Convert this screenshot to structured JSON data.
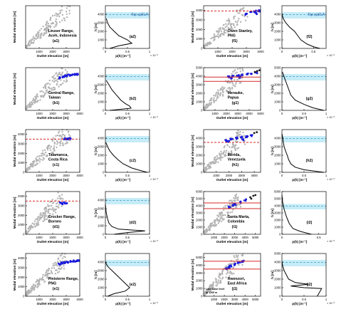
{
  "colors": {
    "scatter_gray": "#b4b4b4",
    "scatter_blue": "#1a1adc",
    "scatter_black": "#1a1a1a",
    "red_line": "#d62a2a",
    "ela_band": "#c6ecf7",
    "ela_dash": "#3b9fc8",
    "profile": "#000000",
    "label_blue": "#1e5aa8"
  },
  "scatter_xlabel": "Outlet elevation [m]",
  "scatter_ylabel": "Modal elevation [m]",
  "profile_ylabel": "h [m]",
  "profile_xlabel": "p(h) [m⁻¹]",
  "profile_exp": "× 10⁻³",
  "top_cpela_label": "Top cpELA",
  "lake_note": [
    "Lake base level",
    "at 1200 m"
  ],
  "chart_data": [
    {
      "type": "scatter",
      "id": "a1",
      "panel": "(a1)",
      "region": [
        "Leuser Range,",
        "Aceh, Indonesia"
      ],
      "xticks": [
        "1000",
        "2000",
        "3000"
      ],
      "yticks": [],
      "xlim": [
        0,
        4000
      ],
      "ylim": [
        0,
        4500
      ],
      "gray_extent": 3400,
      "blue_points": [],
      "black_points": [],
      "red_lines": []
    },
    {
      "type": "line",
      "id": "a2",
      "panel": "(a2)",
      "xticks": [
        "0",
        "0.5",
        "1"
      ],
      "yticks": [
        "0",
        "1000",
        "2000",
        "3000",
        "4000"
      ],
      "xlim": [
        0,
        1
      ],
      "ylim": [
        0,
        5000
      ],
      "ela_band": [
        3500,
        4250
      ],
      "ela_line": 3950,
      "h": [
        0,
        300,
        600,
        1000,
        1500,
        2000,
        2500,
        3000,
        3500
      ],
      "p": [
        0.1,
        0.3,
        0.6,
        0.5,
        0.3,
        0.2,
        0.1,
        0.05,
        0.02
      ]
    },
    {
      "type": "scatter",
      "id": "b1",
      "panel": "(b1)",
      "region": [
        "Central Range,",
        "Taiwan"
      ],
      "xticks": [
        "1000",
        "2000",
        "3000",
        "4000"
      ],
      "yticks": [],
      "xlim": [
        0,
        4000
      ],
      "ylim": [
        0,
        4500
      ],
      "gray_extent": 3100,
      "blue_points": [
        [
          2500,
          3450
        ],
        [
          2800,
          3550
        ],
        [
          3000,
          3650
        ],
        [
          3200,
          3700
        ],
        [
          3400,
          3750
        ],
        [
          3600,
          3800
        ],
        [
          3800,
          3800
        ]
      ],
      "black_points": [],
      "red_lines": []
    },
    {
      "type": "line",
      "id": "b2",
      "panel": "(b2)",
      "xticks": [
        "0",
        "0.5",
        "1"
      ],
      "yticks": [
        "0",
        "1000",
        "2000",
        "3000",
        "4000"
      ],
      "xlim": [
        0,
        1
      ],
      "ylim": [
        0,
        5000
      ],
      "ela_band": [
        3500,
        4250
      ],
      "ela_line": 3950,
      "h": [
        0,
        250,
        500,
        800,
        1200,
        1800,
        2400,
        3000,
        3500
      ],
      "p": [
        0.1,
        0.58,
        0.55,
        0.45,
        0.35,
        0.25,
        0.15,
        0.08,
        0.02
      ]
    },
    {
      "type": "scatter",
      "id": "c1",
      "panel": "(c1)",
      "region": [
        "Talamanca,",
        "Costa Rica"
      ],
      "xticks": [
        "1000",
        "2000",
        "3000",
        "4000"
      ],
      "yticks": [
        "0",
        "1000",
        "2000",
        "3000",
        "4000"
      ],
      "xlim": [
        0,
        4000
      ],
      "ylim": [
        0,
        4500
      ],
      "gray_extent": 3300,
      "blue_points": [
        [
          2900,
          3500
        ],
        [
          3100,
          3550
        ],
        [
          3300,
          3580
        ]
      ],
      "black_points": [],
      "red_lines": [
        3500
      ]
    },
    {
      "type": "line",
      "id": "c2",
      "panel": "(c2)",
      "xticks": [
        "0",
        "0.5",
        "1"
      ],
      "yticks": [
        "0",
        "1000",
        "2000",
        "3000",
        "4000"
      ],
      "xlim": [
        0,
        1
      ],
      "ylim": [
        0,
        5000
      ],
      "ela_band": [
        3500,
        4250
      ],
      "ela_line": 3950,
      "h": [
        0,
        200,
        500,
        1000,
        1500,
        2000,
        2500,
        3000,
        3500
      ],
      "p": [
        0.95,
        0.8,
        0.6,
        0.4,
        0.28,
        0.18,
        0.1,
        0.05,
        0.01
      ]
    },
    {
      "type": "scatter",
      "id": "d1",
      "panel": "(d1)",
      "region": [
        "Crocker Range,",
        "Borneo"
      ],
      "xticks": [
        "1000",
        "2000",
        "3000",
        "4000"
      ],
      "yticks": [
        "0",
        "1000",
        "2000",
        "3000",
        "4000"
      ],
      "xlim": [
        0,
        4000
      ],
      "ylim": [
        0,
        4500
      ],
      "gray_extent": 2800,
      "blue_points": [
        [
          2600,
          3300
        ],
        [
          2700,
          3200
        ],
        [
          2900,
          3300
        ],
        [
          3100,
          3200
        ]
      ],
      "black_points": [],
      "red_lines": [
        3500
      ]
    },
    {
      "type": "line",
      "id": "d2",
      "panel": "(d2)",
      "xticks": [
        "0",
        "0.5",
        "1"
      ],
      "yticks": [
        "0",
        "1000",
        "2000",
        "3000",
        "4000"
      ],
      "xlim": [
        0,
        1
      ],
      "ylim": [
        0,
        5000
      ],
      "ela_band": [
        3500,
        4250
      ],
      "ela_line": 3950,
      "h": [
        0,
        200,
        400,
        600,
        900,
        1300,
        1800,
        2500,
        3500
      ],
      "p": [
        0.2,
        0.5,
        0.9,
        0.3,
        0.15,
        0.08,
        0.05,
        0.02,
        0.0
      ]
    },
    {
      "type": "scatter",
      "id": "e1",
      "panel": "(e1)",
      "region": [
        "Finisterre Range,",
        "PNG"
      ],
      "xticks": [
        "1000",
        "2000",
        "3000",
        "4000"
      ],
      "yticks": [
        "0",
        "1000",
        "2000",
        "3000",
        "4000"
      ],
      "xlim": [
        0,
        4000
      ],
      "ylim": [
        0,
        4500
      ],
      "gray_extent": 3000,
      "blue_points": [
        [
          2500,
          3400
        ],
        [
          2700,
          3500
        ],
        [
          2900,
          3550
        ],
        [
          3100,
          3600
        ],
        [
          3300,
          3650
        ],
        [
          3500,
          3700
        ],
        [
          3700,
          3700
        ],
        [
          3900,
          3750
        ]
      ],
      "black_points": [],
      "red_lines": []
    },
    {
      "type": "line",
      "id": "e2",
      "panel": "(e2)",
      "xticks": [
        "0",
        "0.5",
        "1"
      ],
      "yticks": [
        "0",
        "1000",
        "2000",
        "3000",
        "4000"
      ],
      "xlim": [
        0,
        1
      ],
      "ylim": [
        0,
        5000
      ],
      "ela_band": [
        3500,
        4250
      ],
      "ela_line": 3950,
      "h": [
        0,
        300,
        600,
        1000,
        1500,
        2000,
        2500,
        3000,
        3500,
        4000
      ],
      "p": [
        0.05,
        0.2,
        0.45,
        0.55,
        0.45,
        0.35,
        0.25,
        0.15,
        0.05,
        0.0
      ]
    },
    {
      "type": "scatter",
      "id": "f1",
      "panel": "(f1)",
      "region": [
        "Owen Stanley,",
        "PNG"
      ],
      "xticks": [
        "1000",
        "2000",
        "3000",
        "4000"
      ],
      "yticks": [
        "0",
        "1000",
        "2000",
        "3000",
        "4000"
      ],
      "xlim": [
        0,
        4000
      ],
      "ylim": [
        0,
        4500
      ],
      "gray_extent": 3100,
      "blue_points": [
        [
          3000,
          3600
        ],
        [
          3300,
          3800
        ],
        [
          3600,
          3900
        ],
        [
          3900,
          3950
        ],
        [
          3700,
          3700
        ]
      ],
      "black_points": [],
      "red_lines": [
        3950
      ]
    },
    {
      "type": "line",
      "id": "f2",
      "panel": "(f2)",
      "xticks": [
        "0",
        "0.5"
      ],
      "yticks": [
        "0",
        "1000",
        "2000",
        "3000",
        "4000"
      ],
      "xlim": [
        0,
        0.7
      ],
      "ylim": [
        0,
        5000
      ],
      "ela_band": [
        3500,
        4250
      ],
      "ela_line": 3950,
      "h": [
        0,
        200,
        500,
        1000,
        1500,
        2000,
        2500,
        3000,
        3500,
        4000
      ],
      "p": [
        0.6,
        0.5,
        0.4,
        0.3,
        0.25,
        0.2,
        0.12,
        0.06,
        0.02,
        0.0
      ]
    },
    {
      "type": "scatter",
      "id": "g1",
      "panel": "(g1)",
      "region": [
        "Merauke,",
        "Papua"
      ],
      "xticks": [
        "1000",
        "2000",
        "3000",
        "4000",
        "5000"
      ],
      "yticks": [
        "0",
        "1000",
        "2000",
        "3000",
        "4000",
        "5000"
      ],
      "xlim": [
        0,
        5000
      ],
      "ylim": [
        0,
        5000
      ],
      "gray_extent": 3500,
      "blue_points": [
        [
          2200,
          3900
        ],
        [
          2600,
          4000
        ],
        [
          3000,
          4100
        ],
        [
          3400,
          4200
        ],
        [
          3800,
          4250
        ],
        [
          4200,
          4300
        ],
        [
          4600,
          4400
        ],
        [
          2400,
          3800
        ],
        [
          3200,
          3900
        ]
      ],
      "black_points": [
        [
          4500,
          4500
        ],
        [
          4700,
          4600
        ],
        [
          4900,
          4700
        ]
      ],
      "red_lines": [
        3400,
        3900
      ]
    },
    {
      "type": "line",
      "id": "g2",
      "panel": "(g2)",
      "xticks": [
        "0",
        "0.5",
        "1"
      ],
      "yticks": [
        "0",
        "1000",
        "2000",
        "3000",
        "4000",
        "5000"
      ],
      "xlim": [
        0,
        1
      ],
      "ylim": [
        0,
        5000
      ],
      "ela_band": [
        3500,
        4250
      ],
      "ela_line": 3950,
      "h": [
        0,
        300,
        700,
        1200,
        1800,
        2500,
        3200,
        3900,
        4500
      ],
      "p": [
        0.95,
        0.7,
        0.5,
        0.3,
        0.2,
        0.15,
        0.1,
        0.05,
        0.01
      ]
    },
    {
      "type": "scatter",
      "id": "h1",
      "panel": "(h1)",
      "region": [
        "Mérida,",
        "Venezuela"
      ],
      "xticks": [
        "1000",
        "2000",
        "3000",
        "4000"
      ],
      "yticks": [
        "0",
        "1000",
        "2000",
        "3000",
        "4000"
      ],
      "xlim": [
        0,
        4500
      ],
      "ylim": [
        0,
        5000
      ],
      "gray_extent": 3300,
      "blue_points": [
        [
          1800,
          3700
        ],
        [
          2200,
          3900
        ],
        [
          2600,
          4000
        ],
        [
          3000,
          4100
        ],
        [
          3400,
          4200
        ],
        [
          3800,
          4300
        ],
        [
          2000,
          3600
        ],
        [
          3100,
          3800
        ]
      ],
      "black_points": [
        [
          4000,
          4600
        ],
        [
          4200,
          4700
        ]
      ],
      "red_lines": [
        3500
      ]
    },
    {
      "type": "line",
      "id": "h2",
      "panel": "(h2)",
      "xticks": [
        "0",
        "0.5",
        "1"
      ],
      "yticks": [
        "0",
        "1000",
        "2000",
        "3000",
        "4000"
      ],
      "xlim": [
        0,
        1
      ],
      "ylim": [
        0,
        5000
      ],
      "ela_band": [
        3500,
        4250
      ],
      "ela_line": 3950,
      "h": [
        0,
        300,
        600,
        1000,
        1500,
        2000,
        2500,
        3000,
        3500,
        4000,
        4500
      ],
      "p": [
        0.95,
        0.5,
        0.3,
        0.2,
        0.15,
        0.12,
        0.08,
        0.05,
        0.03,
        0.02,
        0.0
      ]
    },
    {
      "type": "scatter",
      "id": "i1",
      "panel": "(i1)",
      "region": [
        "Santa Marta,",
        "Colombia"
      ],
      "xticks": [
        "1000",
        "2000",
        "3000",
        "4000",
        "5000"
      ],
      "yticks": [
        "0",
        "1000",
        "2000",
        "3000",
        "4000",
        "5000",
        "6000"
      ],
      "xlim": [
        0,
        5500
      ],
      "ylim": [
        0,
        6000
      ],
      "gray_extent": 3700,
      "blue_points": [
        [
          2500,
          3800
        ],
        [
          3000,
          4200
        ],
        [
          3500,
          4500
        ],
        [
          4000,
          4800
        ],
        [
          2800,
          4000
        ]
      ],
      "black_points": [
        [
          4500,
          5200
        ],
        [
          4800,
          5400
        ],
        [
          5000,
          5500
        ],
        [
          4600,
          5000
        ]
      ],
      "red_lines": [
        3600,
        4400
      ]
    },
    {
      "type": "line",
      "id": "i2",
      "panel": "(i2)",
      "xticks": [
        "0",
        "0.5"
      ],
      "yticks": [
        "0",
        "1000",
        "2000",
        "3000",
        "4000",
        "5000",
        "6000"
      ],
      "xlim": [
        0,
        0.6
      ],
      "ylim": [
        0,
        6000
      ],
      "ela_band": [
        3500,
        4250
      ],
      "ela_line": 3950,
      "h": [
        0,
        400,
        800,
        1500,
        2500,
        3500,
        4500,
        5500
      ],
      "p": [
        0.4,
        0.25,
        0.15,
        0.1,
        0.06,
        0.03,
        0.01,
        0.0
      ]
    },
    {
      "type": "scatter",
      "id": "j1",
      "panel": "(j1)",
      "region": [
        "Rwenzori,",
        "East Africa"
      ],
      "xticks": [
        "1000",
        "2000",
        "3000",
        "4000",
        "5000"
      ],
      "yticks": [
        "0",
        "1000",
        "2000",
        "3000",
        "4000",
        "5000"
      ],
      "xlim": [
        0,
        5500
      ],
      "ylim": [
        0,
        5500
      ],
      "gray_extent": 3800,
      "blue_points": [
        [
          2200,
          3600
        ],
        [
          2600,
          3900
        ],
        [
          3000,
          4100
        ],
        [
          3400,
          4300
        ],
        [
          3800,
          4500
        ],
        [
          2400,
          3700
        ]
      ],
      "black_points": [],
      "red_lines": [
        3500,
        4500
      ]
    },
    {
      "type": "line",
      "id": "j2",
      "panel": "(j2)",
      "xticks": [
        "0",
        "0.5",
        "1"
      ],
      "yticks": [
        "0",
        "1000",
        "2000",
        "3000",
        "4000",
        "5000"
      ],
      "xlim": [
        0,
        1
      ],
      "ylim": [
        0,
        5000
      ],
      "ela_band": [
        3500,
        4250
      ],
      "ela_line": 3950,
      "h": [
        0,
        900,
        1000,
        1200,
        1400,
        1600,
        2000,
        2500,
        3000,
        3500,
        4000
      ],
      "p": [
        0.8,
        0.9,
        0.5,
        0.2,
        0.6,
        0.3,
        0.15,
        0.1,
        0.05,
        0.02,
        0.0
      ]
    }
  ]
}
